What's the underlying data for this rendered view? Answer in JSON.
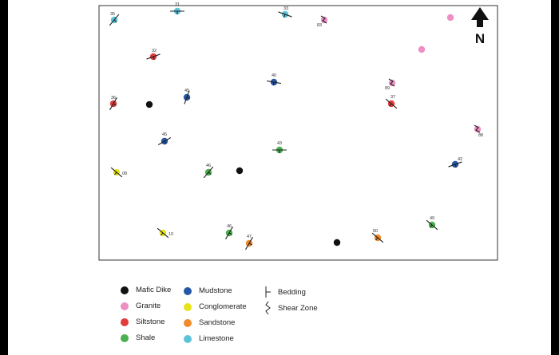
{
  "colors": {
    "mafic_dike": "#111111",
    "granite": "#ee8fc4",
    "siltstone": "#e23b3b",
    "shale": "#4caf50",
    "mudstone": "#2457a6",
    "conglomerate": "#e7e31a",
    "sandstone": "#f08a2a",
    "limestone": "#5cc3d8"
  },
  "north_arrow": {
    "label": "N"
  },
  "legend": {
    "lithologies": [
      {
        "key": "mafic_dike",
        "label": "Mafic Dike"
      },
      {
        "key": "granite",
        "label": "Granite"
      },
      {
        "key": "siltstone",
        "label": "Siltstone"
      },
      {
        "key": "shale",
        "label": "Shale"
      },
      {
        "key": "mudstone",
        "label": "Mudstone"
      },
      {
        "key": "conglomerate",
        "label": "Conglomerate"
      },
      {
        "key": "sandstone",
        "label": "Sandstone"
      },
      {
        "key": "limestone",
        "label": "Limestone"
      }
    ],
    "structures": [
      {
        "key": "bedding",
        "label": "Bedding",
        "icon": "bedding-symbol-icon"
      },
      {
        "key": "shear_zone",
        "label": "Shear Zone",
        "icon": "shear-zone-symbol-icon"
      }
    ]
  },
  "stations": [
    {
      "rock": "limestone",
      "dip": "35",
      "symbol": "bedding",
      "strike": -50
    },
    {
      "rock": "limestone",
      "dip": "31",
      "symbol": "bedding",
      "strike": 0
    },
    {
      "rock": "limestone",
      "dip": "33",
      "symbol": "bedding",
      "strike": 20
    },
    {
      "rock": "granite",
      "dip": "83",
      "symbol": "shear_zone",
      "strike": 10
    },
    {
      "rock": "granite",
      "dip": "",
      "symbol": "none",
      "strike": 0
    },
    {
      "rock": "granite",
      "dip": "",
      "symbol": "none",
      "strike": 0
    },
    {
      "rock": "siltstone",
      "dip": "32",
      "symbol": "bedding",
      "strike": -20
    },
    {
      "rock": "mudstone",
      "dip": "40",
      "symbol": "bedding",
      "strike": 10
    },
    {
      "rock": "granite",
      "dip": "89",
      "symbol": "shear_zone",
      "strike": 0
    },
    {
      "rock": "siltstone",
      "dip": "36",
      "symbol": "bedding",
      "strike": -60
    },
    {
      "rock": "mafic_dike",
      "dip": "",
      "symbol": "none",
      "strike": 0
    },
    {
      "rock": "mudstone",
      "dip": "45",
      "symbol": "bedding",
      "strike": -70
    },
    {
      "rock": "siltstone",
      "dip": "37",
      "symbol": "bedding",
      "strike": 40
    },
    {
      "rock": "granite",
      "dip": "88",
      "symbol": "shear_zone",
      "strike": 0
    },
    {
      "rock": "mudstone",
      "dip": "45",
      "symbol": "bedding",
      "strike": -30
    },
    {
      "rock": "shale",
      "dip": "43",
      "symbol": "bedding",
      "strike": 0
    },
    {
      "rock": "mudstone",
      "dip": "42",
      "symbol": "bedding",
      "strike": -20
    },
    {
      "rock": "conglomerate",
      "dip": "08",
      "symbol": "bedding",
      "strike": 40
    },
    {
      "rock": "shale",
      "dip": "46",
      "symbol": "bedding",
      "strike": -50
    },
    {
      "rock": "mafic_dike",
      "dip": "",
      "symbol": "none",
      "strike": 0
    },
    {
      "rock": "shale",
      "dip": "49",
      "symbol": "bedding",
      "strike": 40
    },
    {
      "rock": "conglomerate",
      "dip": "10",
      "symbol": "bedding",
      "strike": 40
    },
    {
      "rock": "shale",
      "dip": "46",
      "symbol": "bedding",
      "strike": -60
    },
    {
      "rock": "sandstone",
      "dip": "47",
      "symbol": "bedding",
      "strike": -60
    },
    {
      "rock": "sandstone",
      "dip": "50",
      "symbol": "bedding",
      "strike": 40
    },
    {
      "rock": "mafic_dike",
      "dip": "",
      "symbol": "none",
      "strike": 0
    }
  ]
}
